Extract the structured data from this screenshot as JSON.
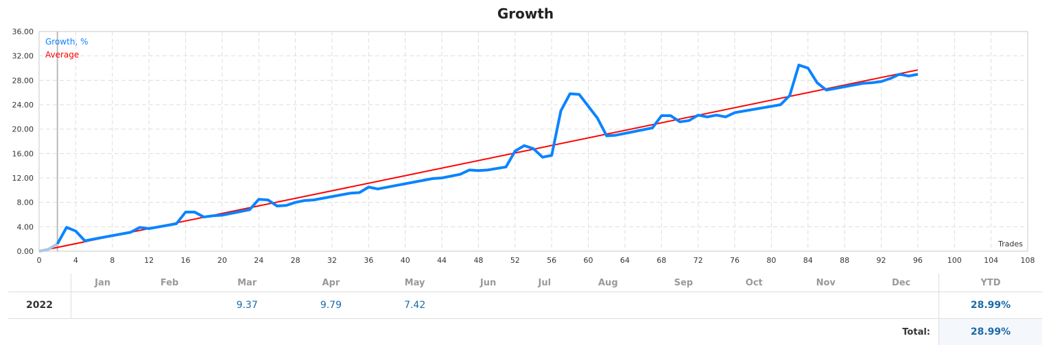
{
  "chart_data": {
    "type": "line",
    "title": "Growth",
    "xlabel": "Trades",
    "xlim": [
      0,
      108
    ],
    "ylim": [
      0,
      36
    ],
    "xticks": [
      0,
      4,
      8,
      12,
      16,
      20,
      24,
      28,
      32,
      36,
      40,
      44,
      48,
      52,
      56,
      60,
      64,
      68,
      72,
      76,
      80,
      84,
      88,
      92,
      96,
      100,
      104,
      108
    ],
    "yticks": [
      "0.00",
      "4.00",
      "8.00",
      "12.00",
      "16.00",
      "20.00",
      "24.00",
      "28.00",
      "32.00",
      "36.00"
    ],
    "grid": true,
    "legend_position": "top-left",
    "series": [
      {
        "name": "Growth, %",
        "color": "#0a84ff",
        "points": [
          [
            0,
            0
          ],
          [
            1,
            0.3
          ],
          [
            2,
            1.2
          ],
          [
            3,
            3.9
          ],
          [
            4,
            3.3
          ],
          [
            5,
            1.7
          ],
          [
            6,
            2.0
          ],
          [
            10,
            3.1
          ],
          [
            11,
            3.9
          ],
          [
            12,
            3.7
          ],
          [
            15,
            4.5
          ],
          [
            16,
            6.4
          ],
          [
            17,
            6.4
          ],
          [
            18,
            5.6
          ],
          [
            19,
            5.8
          ],
          [
            20,
            5.9
          ],
          [
            23,
            6.8
          ],
          [
            24,
            8.5
          ],
          [
            25,
            8.4
          ],
          [
            26,
            7.4
          ],
          [
            27,
            7.5
          ],
          [
            28,
            8.0
          ],
          [
            29,
            8.3
          ],
          [
            30,
            8.4
          ],
          [
            34,
            9.5
          ],
          [
            35,
            9.6
          ],
          [
            36,
            10.5
          ],
          [
            37,
            10.2
          ],
          [
            43,
            11.9
          ],
          [
            44,
            12.0
          ],
          [
            46,
            12.6
          ],
          [
            47,
            13.3
          ],
          [
            48,
            13.2
          ],
          [
            49,
            13.3
          ],
          [
            51,
            13.8
          ],
          [
            52,
            16.4
          ],
          [
            53,
            17.3
          ],
          [
            54,
            16.8
          ],
          [
            55,
            15.4
          ],
          [
            56,
            15.7
          ],
          [
            57,
            23.0
          ],
          [
            58,
            25.8
          ],
          [
            59,
            25.7
          ],
          [
            61,
            21.8
          ],
          [
            62,
            18.9
          ],
          [
            63,
            19.0
          ],
          [
            67,
            20.2
          ],
          [
            68,
            22.2
          ],
          [
            69,
            22.2
          ],
          [
            70,
            21.2
          ],
          [
            71,
            21.4
          ],
          [
            72,
            22.3
          ],
          [
            73,
            22.0
          ],
          [
            74,
            22.3
          ],
          [
            75,
            22.0
          ],
          [
            76,
            22.7
          ],
          [
            81,
            24.0
          ],
          [
            82,
            25.5
          ],
          [
            83,
            30.5
          ],
          [
            84,
            30.0
          ],
          [
            85,
            27.6
          ],
          [
            86,
            26.4
          ],
          [
            90,
            27.5
          ],
          [
            91,
            27.6
          ],
          [
            92,
            27.8
          ],
          [
            93,
            28.3
          ],
          [
            94,
            29.0
          ],
          [
            95,
            28.7
          ],
          [
            96,
            28.99
          ]
        ]
      },
      {
        "name": "Average",
        "color": "#ff0000",
        "points": [
          [
            0,
            0
          ],
          [
            96,
            29.7
          ]
        ]
      }
    ]
  },
  "table": {
    "months": [
      "Jan",
      "Feb",
      "Mar",
      "Apr",
      "May",
      "Jun",
      "Jul",
      "Aug",
      "Sep",
      "Oct",
      "Nov",
      "Dec"
    ],
    "ytd_label": "YTD",
    "rows": [
      {
        "year": "2022",
        "values": [
          "",
          "",
          "9.37",
          "9.79",
          "7.42",
          "",
          "",
          "",
          "",
          "",
          "",
          ""
        ],
        "ytd": "28.99%"
      }
    ],
    "total_label": "Total:",
    "total": "28.99%"
  }
}
